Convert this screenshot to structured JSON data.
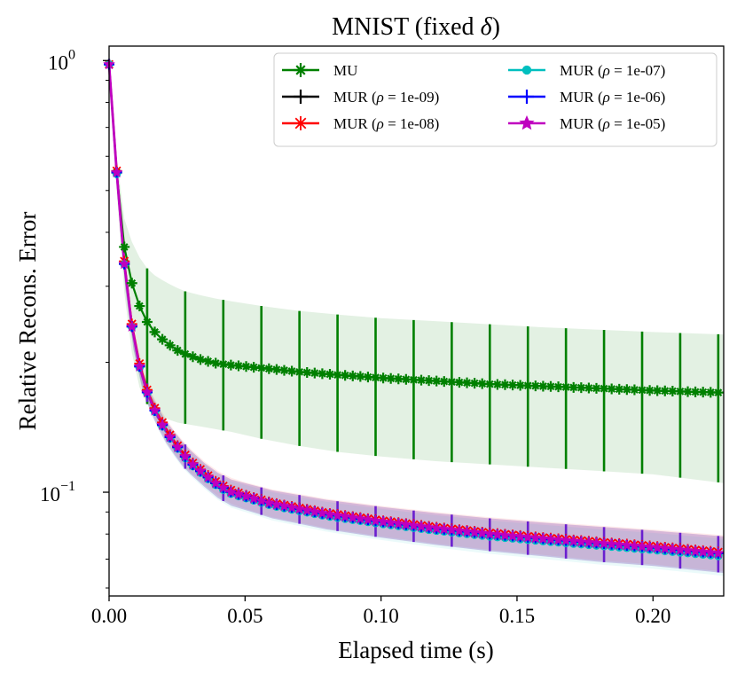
{
  "chart_data": {
    "type": "line",
    "title": "MNIST (fixed δ)",
    "title_prefix": "MNIST (fixed ",
    "title_symbol": "δ",
    "title_suffix": ")",
    "xlabel": "Elapsed time (s)",
    "ylabel": "Relative Recons. Error",
    "xlim": [
      0.0,
      0.226
    ],
    "ylim": [
      0.0575,
      1.08
    ],
    "yscale": "log",
    "grid": false,
    "legend_position": "top-right",
    "x_ticks": [
      0.0,
      0.05,
      0.1,
      0.15,
      0.2
    ],
    "x_tick_labels": [
      "0.00",
      "0.05",
      "0.10",
      "0.15",
      "0.20"
    ],
    "y_ticks": [
      {
        "value": 1.0,
        "base": "10",
        "exp": "0"
      },
      {
        "value": 0.1,
        "base": "10",
        "exp": "−1"
      }
    ],
    "series": [
      {
        "name": "MU",
        "color": "#008000",
        "marker": "plus-star",
        "x": [
          0.0,
          0.0028,
          0.0056,
          0.0084,
          0.0112,
          0.014,
          0.0168,
          0.0196,
          0.0224,
          0.0252,
          0.028,
          0.0336,
          0.0392,
          0.0448,
          0.056,
          0.07,
          0.084,
          0.1,
          0.12,
          0.14,
          0.16,
          0.18,
          0.2,
          0.226
        ],
        "values": [
          0.98,
          0.55,
          0.37,
          0.305,
          0.27,
          0.248,
          0.235,
          0.226,
          0.219,
          0.213,
          0.209,
          0.203,
          0.199,
          0.197,
          0.194,
          0.19,
          0.187,
          0.184,
          0.181,
          0.178,
          0.176,
          0.174,
          0.172,
          0.17
        ],
        "band_lower": [
          0.98,
          0.5,
          0.29,
          0.21,
          0.175,
          0.16,
          0.153,
          0.149,
          0.147,
          0.145,
          0.144,
          0.142,
          0.14,
          0.138,
          0.133,
          0.128,
          0.124,
          0.121,
          0.118,
          0.116,
          0.114,
          0.112,
          0.11,
          0.105
        ],
        "band_upper": [
          0.98,
          0.6,
          0.43,
          0.38,
          0.35,
          0.33,
          0.318,
          0.31,
          0.303,
          0.297,
          0.292,
          0.286,
          0.281,
          0.277,
          0.27,
          0.263,
          0.258,
          0.253,
          0.249,
          0.245,
          0.241,
          0.238,
          0.235,
          0.232
        ]
      },
      {
        "name": "MUR (ρ = 1e-09)",
        "color": "#000000",
        "marker": "plus",
        "x": [
          0.0,
          0.003,
          0.006,
          0.009,
          0.012,
          0.015,
          0.018,
          0.021,
          0.024,
          0.027,
          0.03,
          0.035,
          0.04,
          0.045,
          0.05,
          0.055,
          0.06,
          0.07,
          0.08,
          0.1,
          0.12,
          0.14,
          0.16,
          0.18,
          0.2,
          0.226
        ],
        "values": [
          0.98,
          0.52,
          0.31,
          0.225,
          0.185,
          0.163,
          0.149,
          0.138,
          0.13,
          0.123,
          0.117,
          0.11,
          0.104,
          0.1,
          0.098,
          0.096,
          0.094,
          0.0915,
          0.089,
          0.0855,
          0.0825,
          0.08,
          0.078,
          0.0762,
          0.0745,
          0.072
        ],
        "band_lower": [
          0.98,
          0.5,
          0.295,
          0.214,
          0.176,
          0.155,
          0.141,
          0.13,
          0.122,
          0.115,
          0.11,
          0.103,
          0.097,
          0.093,
          0.091,
          0.089,
          0.087,
          0.0845,
          0.082,
          0.0785,
          0.0755,
          0.073,
          0.071,
          0.069,
          0.0675,
          0.065
        ],
        "band_upper": [
          0.98,
          0.545,
          0.325,
          0.236,
          0.194,
          0.171,
          0.157,
          0.146,
          0.138,
          0.131,
          0.125,
          0.117,
          0.111,
          0.107,
          0.105,
          0.103,
          0.101,
          0.0985,
          0.096,
          0.0925,
          0.0895,
          0.087,
          0.085,
          0.0832,
          0.0815,
          0.079
        ]
      },
      {
        "name": "MUR (ρ = 1e-08)",
        "color": "#ff0000",
        "marker": "asterisk",
        "x": [
          0.0,
          0.003,
          0.006,
          0.009,
          0.012,
          0.015,
          0.018,
          0.021,
          0.024,
          0.027,
          0.03,
          0.035,
          0.04,
          0.045,
          0.05,
          0.055,
          0.06,
          0.07,
          0.08,
          0.1,
          0.12,
          0.14,
          0.16,
          0.18,
          0.2,
          0.226
        ],
        "values": [
          0.98,
          0.525,
          0.315,
          0.228,
          0.188,
          0.165,
          0.151,
          0.14,
          0.131,
          0.124,
          0.118,
          0.111,
          0.105,
          0.101,
          0.0985,
          0.0965,
          0.0945,
          0.092,
          0.0895,
          0.086,
          0.083,
          0.0805,
          0.0785,
          0.0767,
          0.075,
          0.0725
        ],
        "band_lower": [
          0.98,
          0.505,
          0.3,
          0.217,
          0.179,
          0.157,
          0.143,
          0.132,
          0.123,
          0.116,
          0.111,
          0.104,
          0.098,
          0.094,
          0.0915,
          0.0895,
          0.0875,
          0.085,
          0.0825,
          0.079,
          0.076,
          0.0735,
          0.0715,
          0.0695,
          0.068,
          0.0655
        ],
        "band_upper": [
          0.98,
          0.55,
          0.33,
          0.239,
          0.197,
          0.173,
          0.159,
          0.148,
          0.139,
          0.132,
          0.126,
          0.118,
          0.112,
          0.108,
          0.1055,
          0.1035,
          0.1015,
          0.099,
          0.0965,
          0.093,
          0.09,
          0.0875,
          0.0855,
          0.0837,
          0.082,
          0.0795
        ]
      },
      {
        "name": "MUR (ρ = 1e-07)",
        "color": "#00bfbf",
        "marker": "circle",
        "x": [
          0.0,
          0.003,
          0.006,
          0.009,
          0.012,
          0.015,
          0.018,
          0.021,
          0.024,
          0.027,
          0.03,
          0.035,
          0.04,
          0.045,
          0.05,
          0.055,
          0.06,
          0.07,
          0.08,
          0.1,
          0.12,
          0.14,
          0.16,
          0.18,
          0.2,
          0.226
        ],
        "values": [
          0.98,
          0.515,
          0.31,
          0.224,
          0.184,
          0.162,
          0.148,
          0.137,
          0.129,
          0.122,
          0.116,
          0.109,
          0.103,
          0.099,
          0.097,
          0.095,
          0.093,
          0.0905,
          0.088,
          0.0845,
          0.0815,
          0.079,
          0.077,
          0.0752,
          0.0735,
          0.071
        ],
        "band_lower": [
          0.98,
          0.495,
          0.295,
          0.213,
          0.175,
          0.154,
          0.14,
          0.129,
          0.121,
          0.114,
          0.109,
          0.102,
          0.096,
          0.092,
          0.09,
          0.088,
          0.086,
          0.0835,
          0.081,
          0.0775,
          0.0745,
          0.072,
          0.07,
          0.068,
          0.0665,
          0.064
        ],
        "band_upper": [
          0.98,
          0.54,
          0.325,
          0.235,
          0.193,
          0.17,
          0.156,
          0.145,
          0.137,
          0.13,
          0.124,
          0.116,
          0.11,
          0.106,
          0.104,
          0.102,
          0.1,
          0.0975,
          0.095,
          0.0915,
          0.0885,
          0.086,
          0.084,
          0.0822,
          0.0805,
          0.078
        ]
      },
      {
        "name": "MUR (ρ = 1e-06)",
        "color": "#0000ff",
        "marker": "plus",
        "x": [
          0.0,
          0.003,
          0.006,
          0.009,
          0.012,
          0.015,
          0.018,
          0.021,
          0.024,
          0.027,
          0.03,
          0.035,
          0.04,
          0.045,
          0.05,
          0.055,
          0.06,
          0.07,
          0.08,
          0.1,
          0.12,
          0.14,
          0.16,
          0.18,
          0.2,
          0.226
        ],
        "values": [
          0.98,
          0.52,
          0.31,
          0.225,
          0.185,
          0.163,
          0.149,
          0.138,
          0.13,
          0.123,
          0.117,
          0.11,
          0.104,
          0.1,
          0.098,
          0.096,
          0.094,
          0.0915,
          0.089,
          0.0855,
          0.0825,
          0.08,
          0.078,
          0.0762,
          0.0745,
          0.072
        ],
        "band_lower": [
          0.98,
          0.5,
          0.295,
          0.214,
          0.176,
          0.155,
          0.141,
          0.13,
          0.122,
          0.115,
          0.11,
          0.103,
          0.097,
          0.093,
          0.091,
          0.089,
          0.087,
          0.0845,
          0.082,
          0.0785,
          0.0755,
          0.073,
          0.071,
          0.069,
          0.0675,
          0.065
        ],
        "band_upper": [
          0.98,
          0.545,
          0.325,
          0.236,
          0.194,
          0.171,
          0.157,
          0.146,
          0.138,
          0.131,
          0.125,
          0.117,
          0.111,
          0.107,
          0.105,
          0.103,
          0.101,
          0.0985,
          0.096,
          0.0925,
          0.0895,
          0.087,
          0.085,
          0.0832,
          0.0815,
          0.079
        ]
      },
      {
        "name": "MUR (ρ = 1e-05)",
        "color": "#bf00bf",
        "marker": "star",
        "x": [
          0.0,
          0.003,
          0.006,
          0.009,
          0.012,
          0.015,
          0.018,
          0.021,
          0.024,
          0.027,
          0.03,
          0.035,
          0.04,
          0.045,
          0.05,
          0.055,
          0.06,
          0.07,
          0.08,
          0.1,
          0.12,
          0.14,
          0.16,
          0.18,
          0.2,
          0.226
        ],
        "values": [
          0.98,
          0.52,
          0.31,
          0.225,
          0.185,
          0.163,
          0.149,
          0.138,
          0.13,
          0.123,
          0.117,
          0.11,
          0.104,
          0.1,
          0.098,
          0.096,
          0.094,
          0.0915,
          0.089,
          0.0855,
          0.0825,
          0.08,
          0.078,
          0.0762,
          0.0745,
          0.072
        ],
        "band_lower": [
          0.98,
          0.5,
          0.295,
          0.214,
          0.176,
          0.155,
          0.141,
          0.13,
          0.122,
          0.115,
          0.11,
          0.103,
          0.097,
          0.093,
          0.091,
          0.089,
          0.087,
          0.0845,
          0.082,
          0.0785,
          0.0755,
          0.073,
          0.071,
          0.069,
          0.0675,
          0.065
        ],
        "band_upper": [
          0.98,
          0.545,
          0.325,
          0.236,
          0.194,
          0.171,
          0.157,
          0.146,
          0.138,
          0.131,
          0.125,
          0.117,
          0.111,
          0.107,
          0.105,
          0.103,
          0.101,
          0.0985,
          0.096,
          0.0925,
          0.0895,
          0.087,
          0.085,
          0.0832,
          0.0815,
          0.079
        ]
      }
    ],
    "legend": {
      "location": "top-right",
      "columns": 2,
      "entries": [
        {
          "label_prefix": "MU",
          "symbol": "",
          "label_suffix": ""
        },
        {
          "label_prefix": "MUR (",
          "symbol": "ρ",
          "label_suffix": " = 1e-07)"
        },
        {
          "label_prefix": "MUR (",
          "symbol": "ρ",
          "label_suffix": " = 1e-09)"
        },
        {
          "label_prefix": "MUR (",
          "symbol": "ρ",
          "label_suffix": " = 1e-06)"
        },
        {
          "label_prefix": "MUR (",
          "symbol": "ρ",
          "label_suffix": " = 1e-08)"
        },
        {
          "label_prefix": "MUR (",
          "symbol": "ρ",
          "label_suffix": " = 1e-05)"
        }
      ]
    }
  }
}
